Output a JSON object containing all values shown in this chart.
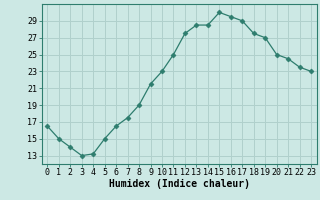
{
  "x": [
    0,
    1,
    2,
    3,
    4,
    5,
    6,
    7,
    8,
    9,
    10,
    11,
    12,
    13,
    14,
    15,
    16,
    17,
    18,
    19,
    20,
    21,
    22,
    23
  ],
  "y": [
    16.5,
    15.0,
    14.0,
    13.0,
    13.2,
    15.0,
    16.5,
    17.5,
    19.0,
    21.5,
    23.0,
    25.0,
    27.5,
    28.5,
    28.5,
    30.0,
    29.5,
    29.0,
    27.5,
    27.0,
    25.0,
    24.5,
    23.5,
    23.0
  ],
  "xlabel": "Humidex (Indice chaleur)",
  "ylim": [
    12,
    31
  ],
  "yticks": [
    13,
    15,
    17,
    19,
    21,
    23,
    25,
    27,
    29
  ],
  "xticks": [
    0,
    1,
    2,
    3,
    4,
    5,
    6,
    7,
    8,
    9,
    10,
    11,
    12,
    13,
    14,
    15,
    16,
    17,
    18,
    19,
    20,
    21,
    22,
    23
  ],
  "line_color": "#2e7d6e",
  "marker": "D",
  "marker_size": 2.5,
  "bg_color": "#cce8e4",
  "grid_color": "#b0d0cc",
  "spine_color": "#2e7d6e",
  "tick_label_fontsize": 6.0,
  "xlabel_fontsize": 7.0
}
